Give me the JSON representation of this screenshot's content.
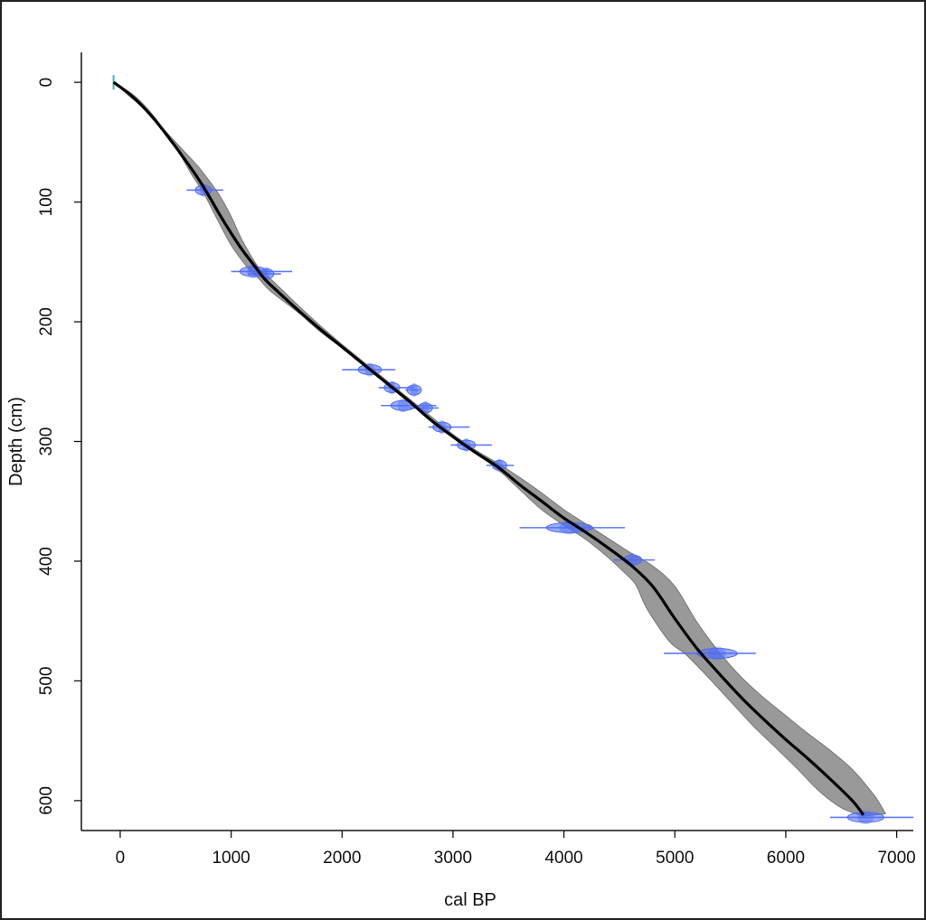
{
  "chart_data": {
    "type": "line",
    "title": "",
    "xlabel": "cal BP",
    "ylabel": "Depth (cm)",
    "xlim": [
      -350,
      7150
    ],
    "ylim": [
      625,
      -25
    ],
    "y_inverted": true,
    "xticks": [
      0,
      1000,
      2000,
      3000,
      4000,
      5000,
      6000,
      7000
    ],
    "yticks": [
      0,
      100,
      200,
      300,
      400,
      500,
      600
    ],
    "grid": false,
    "legend": "none",
    "colors": {
      "line": "#000000",
      "band": "#999999",
      "band_edge": "#777777",
      "dates": "#4d6cf5",
      "surface_marker": "#3fb6b0"
    },
    "series": [
      {
        "kind": "age-depth-model-mean",
        "x": [
          -60,
          100,
          300,
          500,
          700,
          800,
          900,
          1000,
          1100,
          1200,
          1300,
          1400,
          1600,
          1800,
          2000,
          2200,
          2400,
          2600,
          2800,
          3000,
          3200,
          3400,
          3600,
          3800,
          4000,
          4200,
          4400,
          4600,
          4800,
          5000,
          5200,
          5400,
          5600,
          5800,
          6000,
          6200,
          6400,
          6600,
          6700
        ],
        "y": [
          0,
          11,
          30,
          54,
          80,
          95,
          111,
          126,
          140,
          152,
          164,
          173,
          190,
          206,
          221,
          236,
          251,
          266,
          282,
          296,
          309,
          321,
          336,
          350,
          364,
          376,
          389,
          403,
          421,
          448,
          473,
          494,
          514,
          532,
          549,
          565,
          582,
          600,
          612
        ]
      },
      {
        "kind": "95% range upper (younger) edge",
        "x": [
          -60,
          150,
          350,
          550,
          650,
          750,
          850,
          1000,
          1150,
          1250,
          1350,
          1600,
          1800,
          2000,
          2200,
          2400,
          2600,
          2800,
          3000,
          3200,
          3400,
          3600,
          3800,
          4000,
          4200,
          4400,
          4550,
          4650,
          4750,
          4950,
          5100,
          5300,
          5500,
          5700,
          5900,
          6100,
          6300,
          6500,
          6700
        ],
        "y": [
          0,
          13,
          34,
          62,
          78,
          92,
          110,
          136,
          155,
          164,
          174,
          192,
          208,
          222,
          237,
          252,
          267,
          283,
          297,
          310,
          323,
          340,
          357,
          370,
          382,
          397,
          410,
          420,
          440,
          467,
          478,
          497,
          517,
          537,
          555,
          573,
          592,
          606,
          613
        ]
      },
      {
        "kind": "95% range lower (older) edge",
        "x": [
          -60,
          50,
          250,
          450,
          600,
          700,
          800,
          900,
          1000,
          1100,
          1250,
          1400,
          1600,
          1800,
          2000,
          2200,
          2400,
          2600,
          2800,
          3000,
          3200,
          3400,
          3600,
          3800,
          4000,
          4200,
          4400,
          4600,
          4800,
          5000,
          5200,
          5400,
          5600,
          5800,
          6000,
          6200,
          6400,
          6600,
          6800,
          6900
        ],
        "y": [
          0,
          9,
          25,
          45,
          60,
          70,
          82,
          95,
          112,
          132,
          155,
          168,
          186,
          203,
          219,
          234,
          249,
          264,
          279,
          294,
          307,
          318,
          330,
          343,
          357,
          369,
          381,
          393,
          404,
          421,
          451,
          476,
          497,
          514,
          529,
          544,
          558,
          574,
          596,
          611
        ]
      }
    ],
    "dated_samples": [
      {
        "depth": 90,
        "age": 750,
        "range": [
          600,
          930
        ]
      },
      {
        "depth": 158,
        "age": 1200,
        "range": [
          1000,
          1550
        ]
      },
      {
        "depth": 160,
        "age": 1320,
        "range": [
          1150,
          1450
        ]
      },
      {
        "depth": 240,
        "age": 2250,
        "range": [
          2000,
          2480
        ]
      },
      {
        "depth": 255,
        "age": 2450,
        "range": [
          2330,
          2650
        ]
      },
      {
        "depth": 257,
        "age": 2650,
        "range": [
          2570,
          2700
        ]
      },
      {
        "depth": 270,
        "age": 2550,
        "range": [
          2350,
          2850
        ]
      },
      {
        "depth": 272,
        "age": 2750,
        "range": [
          2600,
          2870
        ]
      },
      {
        "depth": 288,
        "age": 2900,
        "range": [
          2780,
          3150
        ]
      },
      {
        "depth": 303,
        "age": 3120,
        "range": [
          2980,
          3350
        ]
      },
      {
        "depth": 320,
        "age": 3420,
        "range": [
          3300,
          3550
        ]
      },
      {
        "depth": 372,
        "age": 4050,
        "range": [
          3600,
          4550
        ]
      },
      {
        "depth": 399,
        "age": 4620,
        "range": [
          4450,
          4820
        ]
      },
      {
        "depth": 477,
        "age": 5380,
        "range": [
          4900,
          5730
        ]
      },
      {
        "depth": 614,
        "age": 6720,
        "range": [
          6400,
          7150
        ]
      }
    ]
  }
}
